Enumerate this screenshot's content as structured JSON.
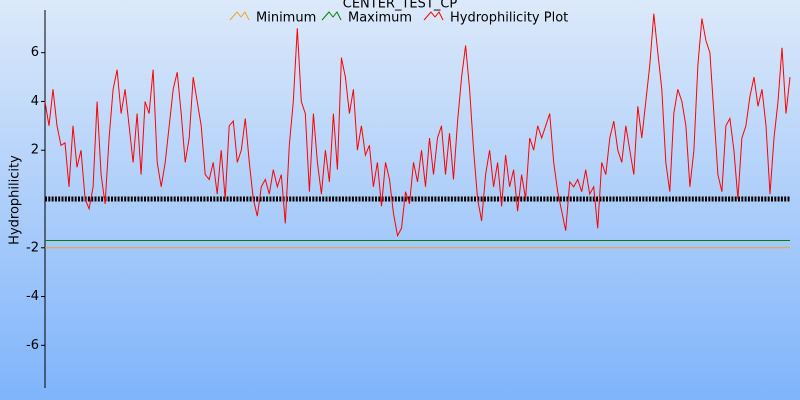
{
  "chart_data": {
    "type": "line",
    "title": "CENTER_TEST_CP",
    "y_label": "Hydrophilicity",
    "ylim": [
      -7.75,
      7.75
    ],
    "yticks": [
      -6,
      -4,
      -2,
      2,
      4,
      6
    ],
    "series": [
      {
        "name": "Minimum",
        "color": "#f0a030",
        "value": -2
      },
      {
        "name": "Maximum",
        "color": "#008000",
        "value": -1.7
      },
      {
        "name": "Hydrophilicity Plot",
        "color": "#ff0000",
        "values": [
          4,
          3,
          4.5,
          3,
          2.2,
          2.3,
          0.5,
          3,
          1.3,
          2,
          0,
          -0.4,
          0.5,
          4,
          1,
          -0.2,
          2.5,
          4.5,
          5.3,
          3.5,
          4.5,
          3,
          1.5,
          3.5,
          1,
          4,
          3.5,
          5.3,
          1.5,
          0.5,
          1.5,
          3,
          4.5,
          5.2,
          3.5,
          1.5,
          2.5,
          5,
          4,
          3,
          1,
          0.8,
          1.5,
          0.2,
          2,
          0,
          3,
          3.2,
          1.5,
          2,
          3.3,
          1.5,
          0,
          -0.7,
          0.5,
          0.8,
          0.2,
          1.2,
          0.5,
          1,
          -1,
          2.2,
          4,
          7,
          4,
          3.5,
          0.3,
          3.5,
          1.5,
          0.2,
          2,
          0.7,
          3.5,
          1.2,
          5.8,
          5,
          3.5,
          4.5,
          2,
          3,
          1.8,
          2.2,
          0.5,
          1.5,
          -0.3,
          1.5,
          0.8,
          -0.6,
          -1.5,
          -1.2,
          0.3,
          -0.2,
          1.5,
          0.7,
          2,
          0.5,
          2.5,
          1,
          2.5,
          3,
          1,
          2.7,
          0.8,
          3.2,
          5,
          6.3,
          4.5,
          2,
          0,
          -0.9,
          1,
          2,
          0.5,
          1.5,
          -0.3,
          1.8,
          0.5,
          1.2,
          -0.5,
          1,
          0,
          2.5,
          2,
          3,
          2.5,
          3,
          3.5,
          1.5,
          0.3,
          -0.5,
          -1.3,
          0.7,
          0.5,
          0.8,
          0.3,
          1.2,
          0.2,
          0.5,
          -1.2,
          1.5,
          1,
          2.5,
          3.2,
          2,
          1.5,
          3,
          2,
          1,
          3.8,
          2.5,
          4,
          5.5,
          7.6,
          6,
          4.5,
          1.5,
          0.3,
          3.5,
          4.5,
          4,
          3,
          0.5,
          2,
          5.5,
          7.4,
          6.5,
          6,
          3.5,
          1,
          0.3,
          3,
          3.3,
          2,
          0,
          2.5,
          3,
          4.2,
          5,
          3.8,
          4.5,
          3,
          0.2,
          2.5,
          4,
          6.2,
          3.5,
          5
        ]
      }
    ]
  }
}
